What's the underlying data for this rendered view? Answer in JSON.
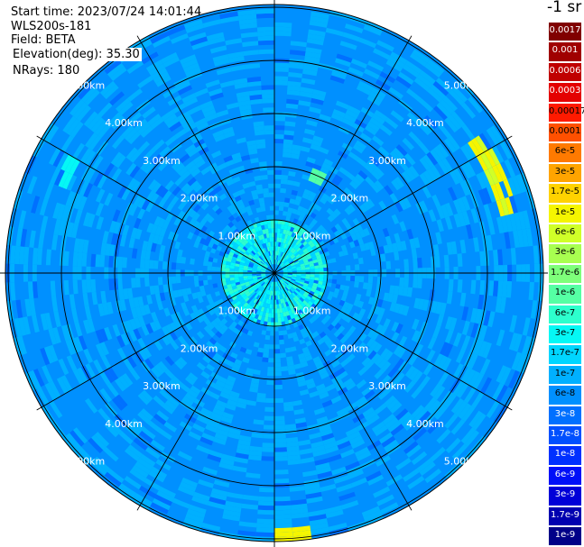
{
  "info": {
    "start_time": "Start time: 2023/07/24 14:01:44",
    "instrument": "WLS200s-181",
    "field": "Field: BETA",
    "elevation": "Elevation(deg): 35.30",
    "nrays": "NRays: 180"
  },
  "colorbar": {
    "unit_label": "-1 sr",
    "ticks": [
      {
        "label": "0.0017",
        "color": "#800000"
      },
      {
        "label": "0.001",
        "color": "#a00000"
      },
      {
        "label": "0.0006",
        "color": "#c00000"
      },
      {
        "label": "0.0003",
        "color": "#e40000"
      },
      {
        "label": "0.00017",
        "color": "#ff1a00"
      },
      {
        "label": "0.0001",
        "color": "#ff5000"
      },
      {
        "label": "6e-5",
        "color": "#ff7a00"
      },
      {
        "label": "3e-5",
        "color": "#ffa400"
      },
      {
        "label": "1.7e-5",
        "color": "#ffd200"
      },
      {
        "label": "1e-5",
        "color": "#f5f500"
      },
      {
        "label": "6e-6",
        "color": "#d0ff28"
      },
      {
        "label": "3e-6",
        "color": "#a8ff50"
      },
      {
        "label": "1.7e-6",
        "color": "#7eff7a"
      },
      {
        "label": "1e-6",
        "color": "#55ffa4"
      },
      {
        "label": "6e-7",
        "color": "#2dffcd"
      },
      {
        "label": "3e-7",
        "color": "#05f8f5"
      },
      {
        "label": "1.7e-7",
        "color": "#00d6ff"
      },
      {
        "label": "1e-7",
        "color": "#00b0ff"
      },
      {
        "label": "6e-8",
        "color": "#0090ff"
      },
      {
        "label": "3e-8",
        "color": "#0070ff"
      },
      {
        "label": "1.7e-8",
        "color": "#0050ff"
      },
      {
        "label": "1e-8",
        "color": "#0030ff"
      },
      {
        "label": "6e-9",
        "color": "#0010f8"
      },
      {
        "label": "3e-9",
        "color": "#0000d8"
      },
      {
        "label": "1.7e-9",
        "color": "#0000b0"
      },
      {
        "label": "1e-9",
        "color": "#000088"
      }
    ]
  },
  "chart_data": {
    "type": "heatmap",
    "projection": "polar (PPI)",
    "field": "BETA",
    "range_rings_km": [
      1.0,
      2.0,
      3.0,
      4.0,
      5.0
    ],
    "ring_labels": [
      "1.00km",
      "2.00km",
      "3.00km",
      "4.00km",
      "5.00km"
    ],
    "max_range_km": 5.0,
    "azimuth_spokes": 12,
    "nrays": 180,
    "dominant_value": "about 1e-7 to 3e-8 (blue/light blue) throughout",
    "features": [
      {
        "region": "near range 0.5-1.0 km",
        "value": "about 3e-7 to 1e-6 (cyan/green)"
      },
      {
        "region": "east arc near 4.5-5.0 km",
        "value": "about 1e-5 to 3e-5 (yellow/orange)"
      },
      {
        "region": "south near 5.0 km",
        "value": "about 1e-5 (yellow)"
      },
      {
        "region": "north-northeast near 2.0 km",
        "value": "about 1e-6 (light green)"
      }
    ]
  }
}
